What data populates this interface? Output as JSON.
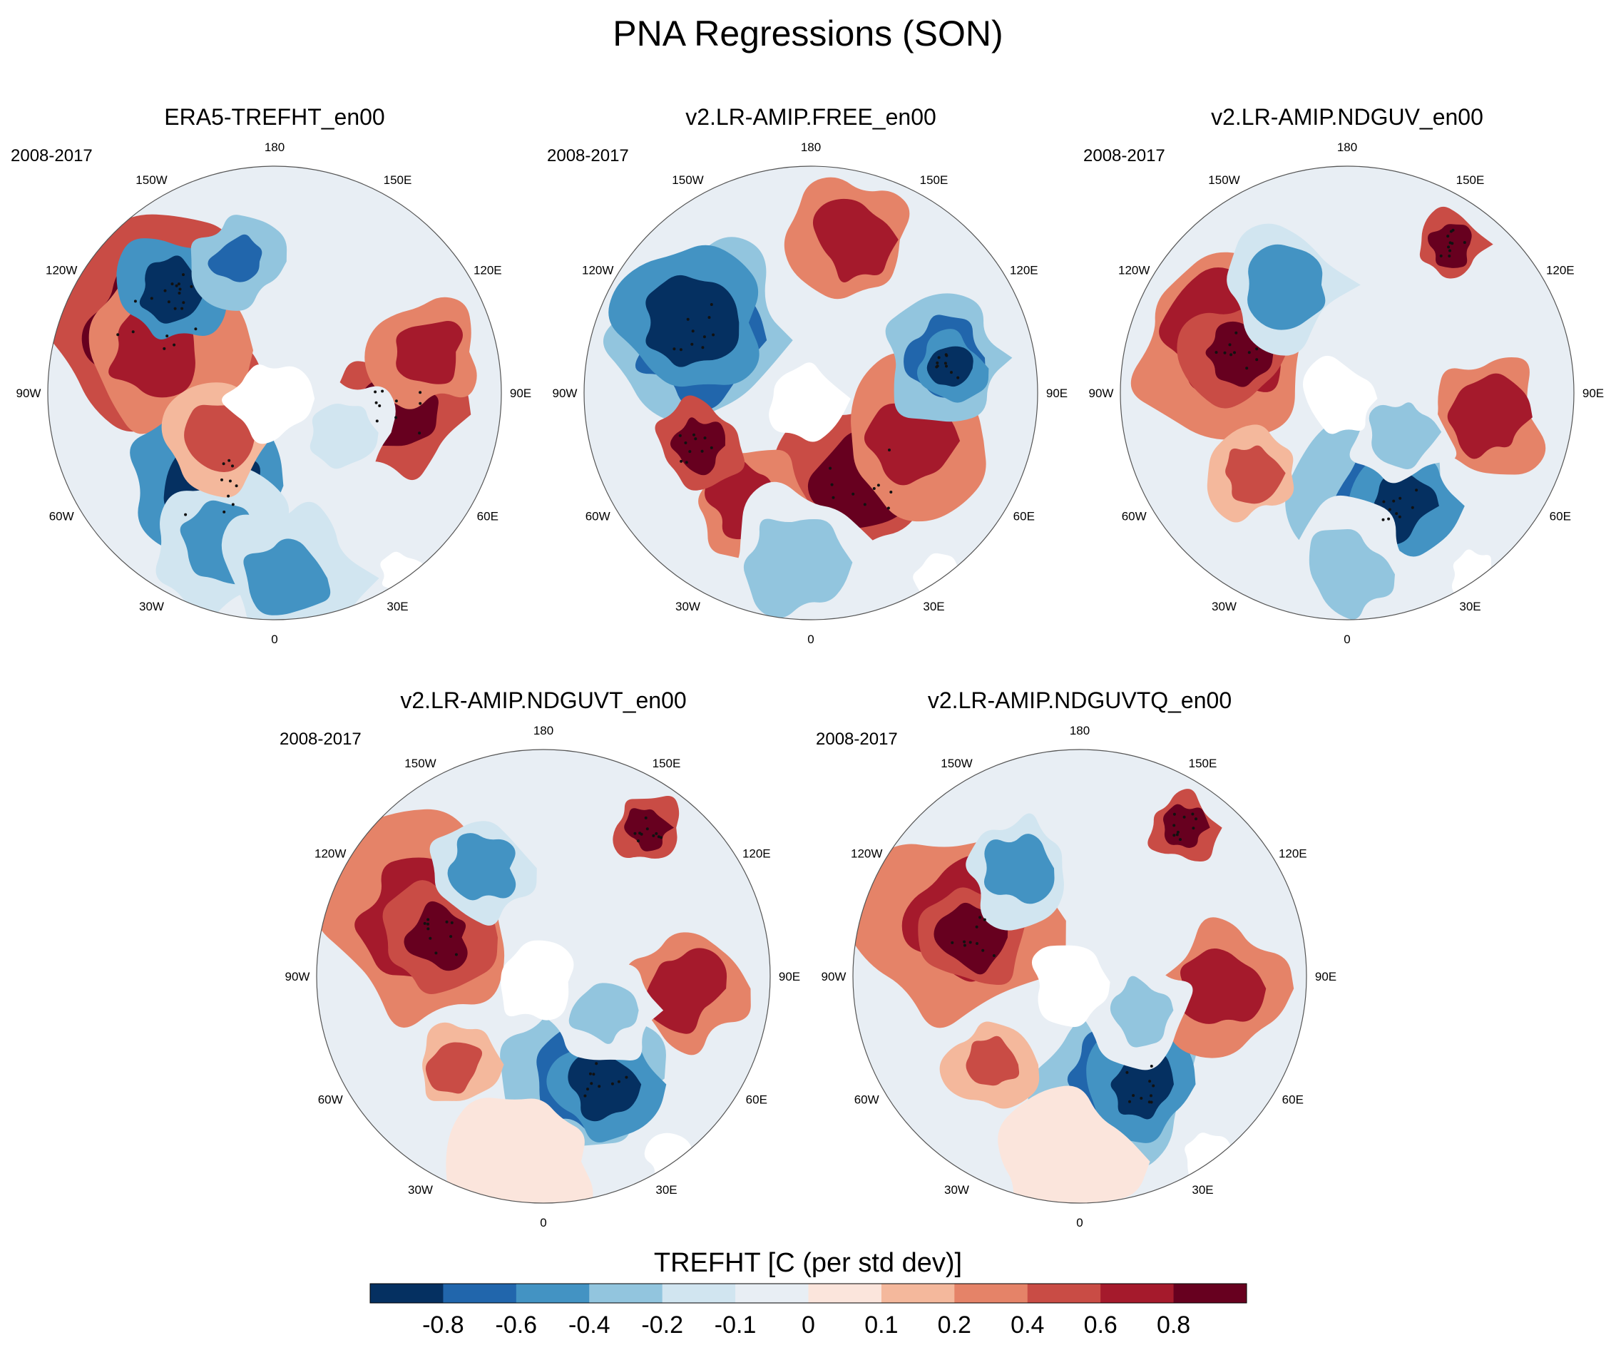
{
  "figure_title": "PNA Regressions (SON)",
  "colorbar": {
    "label": "TREFHT [C (per std dev)]",
    "ticks": [
      "-0.8",
      "-0.6",
      "-0.4",
      "-0.2",
      "-0.1",
      "0",
      "0.1",
      "0.2",
      "0.4",
      "0.6",
      "0.8"
    ],
    "colors": [
      "#053061",
      "#2166ac",
      "#4393c3",
      "#92c5de",
      "#d1e5f0",
      "#e8eef4",
      "#fbe5dc",
      "#f4b89c",
      "#e58368",
      "#c94c45",
      "#a51a2c",
      "#67001f"
    ]
  },
  "chart_data": {
    "type": "polar-stereographic-contour-map",
    "title": "PNA Regressions (SON)",
    "variable": "TREFHT",
    "units": "C (per std dev)",
    "season": "SON",
    "longitude_labels": [
      "180",
      "150E",
      "120E",
      "90E",
      "60E",
      "30E",
      "0",
      "30W",
      "60W",
      "90W",
      "120W",
      "150W"
    ],
    "contour_levels": [
      -0.8,
      -0.6,
      -0.4,
      -0.2,
      -0.1,
      0,
      0.1,
      0.2,
      0.4,
      0.6,
      0.8
    ],
    "panels": [
      {
        "title": "ERA5-TREFHT_en00",
        "period": "2008-2017"
      },
      {
        "title": "v2.LR-AMIP.FREE_en00",
        "period": "2008-2017"
      },
      {
        "title": "v2.LR-AMIP.NDGUV_en00",
        "period": "2008-2017"
      },
      {
        "title": "v2.LR-AMIP.NDGUVT_en00",
        "period": "2008-2017"
      },
      {
        "title": "v2.LR-AMIP.NDGUVTQ_en00",
        "period": "2008-2017"
      }
    ]
  }
}
